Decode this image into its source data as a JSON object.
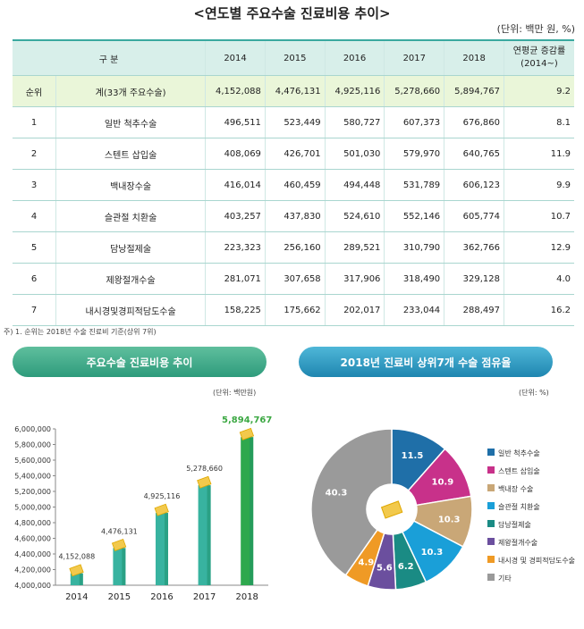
{
  "title": "<연도별 주요수술 진료비용 추이>",
  "unit": "(단위: 백만 원, %)",
  "table": {
    "header": {
      "col1": "구 분",
      "years": [
        "2014",
        "2015",
        "2016",
        "2017",
        "2018"
      ],
      "growth": "연평균 증감률\n(2014~)"
    },
    "rows": [
      {
        "rank": "순위",
        "name": "계(33개 주요수술)",
        "values": [
          "4,152,088",
          "4,476,131",
          "4,925,116",
          "5,278,660",
          "5,894,767"
        ],
        "growth": "9.2"
      },
      {
        "rank": "1",
        "name": "일반 척추수술",
        "values": [
          "496,511",
          "523,449",
          "580,727",
          "607,373",
          "676,860"
        ],
        "growth": "8.1"
      },
      {
        "rank": "2",
        "name": "스텐트 삽입술",
        "values": [
          "408,069",
          "426,701",
          "501,030",
          "579,970",
          "640,765"
        ],
        "growth": "11.9"
      },
      {
        "rank": "3",
        "name": "백내장수술",
        "values": [
          "416,014",
          "460,459",
          "494,448",
          "531,789",
          "606,123"
        ],
        "growth": "9.9"
      },
      {
        "rank": "4",
        "name": "슬관절 치환술",
        "values": [
          "403,257",
          "437,830",
          "524,610",
          "552,146",
          "605,774"
        ],
        "growth": "10.7"
      },
      {
        "rank": "5",
        "name": "담낭절제술",
        "values": [
          "223,323",
          "256,160",
          "289,521",
          "310,790",
          "362,766"
        ],
        "growth": "12.9"
      },
      {
        "rank": "6",
        "name": "제왕절개수술",
        "values": [
          "281,071",
          "307,658",
          "317,906",
          "318,490",
          "329,128"
        ],
        "growth": "4.0"
      },
      {
        "rank": "7",
        "name": "내시경및경피적담도수술",
        "values": [
          "158,225",
          "175,662",
          "202,017",
          "233,044",
          "288,497"
        ],
        "growth": "16.2"
      }
    ]
  },
  "note": "주) 1. 순위는 2018년 수술 진료비 기준(상위 7위)",
  "left_pill": "주요수술 진료비용 추이",
  "right_pill": "2018년 진료비 상위7개 수술 점유율",
  "left_unit": "(단위: 백만원)",
  "right_unit": "(단위: %)",
  "colors": {
    "bar_light": "#38b3a0",
    "bar_dark": "#1c8f6a",
    "last_bar": "#2ea84d",
    "last_label": "#3ca843"
  },
  "chart_data": [
    {
      "type": "bar",
      "categories": [
        "2014",
        "2015",
        "2016",
        "2017",
        "2018"
      ],
      "values": [
        4152088,
        4476131,
        4925116,
        5278660,
        5894767
      ],
      "value_labels": [
        "4,152,088",
        "4,476,131",
        "4,925,116",
        "5,278,660",
        "5,894,767"
      ],
      "title": "주요수술 진료비용 추이",
      "ylabel": "",
      "ylim": [
        4000000,
        6000000
      ],
      "yticks": [
        4000000,
        4200000,
        4400000,
        4600000,
        4800000,
        5000000,
        5200000,
        5400000,
        5600000,
        5800000,
        6000000
      ],
      "ytick_labels": [
        "4,000,000",
        "4,200,000",
        "4,400,000",
        "4,600,000",
        "4,800,000",
        "5,000,000",
        "5,200,000",
        "5,400,000",
        "5,600,000",
        "5,800,000",
        "6,000,000"
      ]
    },
    {
      "type": "pie",
      "title": "2018년 진료비 상위7개 수술 점유율",
      "slices": [
        {
          "name": "일반 척추수술",
          "value": 11.5,
          "label": "11.5",
          "color": "#1f6fa8"
        },
        {
          "name": "스텐트 삽입술",
          "value": 10.9,
          "label": "10.9",
          "color": "#c8318a"
        },
        {
          "name": "백내장 수술",
          "value": 10.3,
          "label": "10.3",
          "color": "#c9a777"
        },
        {
          "name": "슬관절 치환술",
          "value": 10.3,
          "label": "10.3",
          "color": "#1a9fd8"
        },
        {
          "name": "담낭절제술",
          "value": 6.2,
          "label": "6.2",
          "color": "#1a8b84"
        },
        {
          "name": "제왕절개수술",
          "value": 5.6,
          "label": "5.6",
          "color": "#6b4f9e"
        },
        {
          "name": "내시경 및 경피적담도수술",
          "value": 4.9,
          "label": "4.9",
          "color": "#ef9a25"
        },
        {
          "name": "기타",
          "value": 40.3,
          "label": "40.3",
          "color": "#9a9a9a"
        }
      ]
    }
  ]
}
